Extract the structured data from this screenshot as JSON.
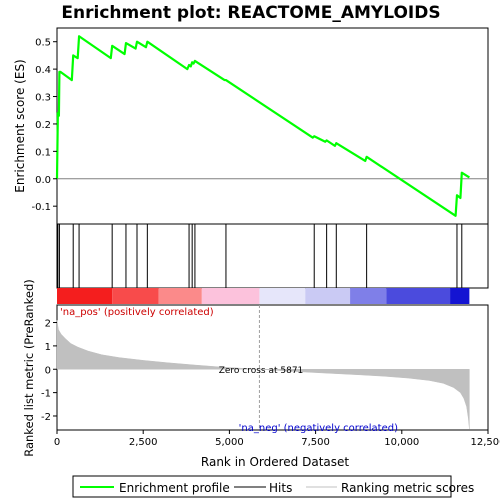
{
  "chart_data": {
    "type": "line",
    "title": "Enrichment plot: REACTOME_AMYLOIDS",
    "xlabel": "Rank in Ordered Dataset",
    "es_panel": {
      "ylabel": "Enrichment score (ES)",
      "yticks": [
        "0.5",
        "0.4",
        "0.3",
        "0.2",
        "0.1",
        "0.0",
        "-0.1"
      ],
      "ylim": [
        -0.165,
        0.55
      ],
      "series_name": "Enrichment profile",
      "color": "#00ff00",
      "x": [
        0,
        25,
        55,
        70,
        100,
        430,
        470,
        600,
        640,
        1560,
        1600,
        1960,
        2000,
        2280,
        2320,
        2580,
        2620,
        3780,
        3830,
        3880,
        3920,
        3960,
        4000,
        4860,
        4900,
        7420,
        7460,
        7780,
        7820,
        8060,
        8100,
        8940,
        8980,
        11560,
        11600,
        11700,
        11740,
        11960
      ],
      "y": [
        0.0,
        0.24,
        0.23,
        0.39,
        0.39,
        0.36,
        0.45,
        0.44,
        0.52,
        0.44,
        0.485,
        0.455,
        0.495,
        0.475,
        0.5,
        0.48,
        0.5,
        0.4,
        0.415,
        0.41,
        0.425,
        0.42,
        0.43,
        0.36,
        0.36,
        0.15,
        0.155,
        0.135,
        0.14,
        0.12,
        0.13,
        0.065,
        0.08,
        -0.135,
        -0.06,
        -0.07,
        0.022,
        0.005
      ]
    },
    "hits": [
      25,
      70,
      470,
      640,
      1600,
      2000,
      2320,
      2620,
      3830,
      3920,
      4000,
      4900,
      7460,
      7820,
      8100,
      8980,
      11600,
      11740
    ],
    "color_bar": {
      "segments": [
        {
          "from": 0,
          "to": 1600,
          "color": "#f41e1e"
        },
        {
          "from": 1600,
          "to": 2950,
          "color": "#f84b4b"
        },
        {
          "from": 2950,
          "to": 4200,
          "color": "#fb8a8a"
        },
        {
          "from": 4200,
          "to": 5871,
          "color": "#fcc2dc"
        },
        {
          "from": 5871,
          "to": 7200,
          "color": "#e6e6fa"
        },
        {
          "from": 7200,
          "to": 8500,
          "color": "#cacaf4"
        },
        {
          "from": 8500,
          "to": 9550,
          "color": "#7f7fe8"
        },
        {
          "from": 9550,
          "to": 11400,
          "color": "#4b4bdd"
        },
        {
          "from": 11400,
          "to": 11960,
          "color": "#1414d2"
        }
      ]
    },
    "metric_panel": {
      "ylabel": "Ranked list metric (PreRanked)",
      "yticks": [
        "2",
        "1",
        "0",
        "-1",
        "-2"
      ],
      "ylim": [
        -2.6,
        2.75
      ],
      "series_name": "Ranking metric scores",
      "color": "#c0c0c0",
      "x": [
        0,
        40,
        120,
        250,
        400,
        600,
        900,
        1300,
        1800,
        2500,
        3200,
        4000,
        4800,
        5500,
        5871,
        6500,
        7200,
        8000,
        8800,
        9500,
        10200,
        10800,
        11200,
        11500,
        11700,
        11800,
        11880,
        11930,
        11960
      ],
      "y": [
        2.1,
        1.7,
        1.5,
        1.3,
        1.1,
        0.95,
        0.78,
        0.62,
        0.5,
        0.38,
        0.28,
        0.18,
        0.09,
        0.03,
        0.0,
        -0.06,
        -0.12,
        -0.18,
        -0.24,
        -0.3,
        -0.38,
        -0.48,
        -0.6,
        -0.78,
        -1.0,
        -1.25,
        -1.6,
        -2.1,
        -2.55
      ],
      "pos_label": "'na_pos' (positively correlated)",
      "neg_label": "'na_neg' (negatively correlated)",
      "zero_cross_label": "Zero cross at 5871",
      "zero_cross": 5871
    },
    "xlim": [
      0,
      12500
    ],
    "xticks": [
      "0",
      "2,500",
      "5,000",
      "7,500",
      "10,000",
      "12,500"
    ],
    "legend": [
      "Enrichment profile",
      "Hits",
      "Ranking metric scores"
    ],
    "legend_position": "bottom"
  }
}
